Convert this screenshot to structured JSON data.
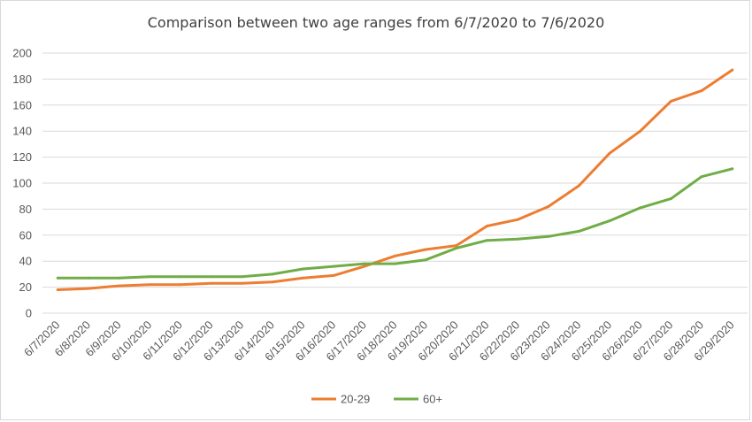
{
  "chart_data": {
    "type": "line",
    "title": "Comparison  between two age ranges from 6/7/2020 to 7/6/2020",
    "xlabel": "",
    "ylabel": "",
    "categories": [
      "6/7/2020",
      "6/8/2020",
      "6/9/2020",
      "6/10/2020",
      "6/11/2020",
      "6/12/2020",
      "6/13/2020",
      "6/14/2020",
      "6/15/2020",
      "6/16/2020",
      "6/17/2020",
      "6/18/2020",
      "6/19/2020",
      "6/20/2020",
      "6/21/2020",
      "6/22/2020",
      "6/23/2020",
      "6/24/2020",
      "6/25/2020",
      "6/26/2020",
      "6/27/2020",
      "6/28/2020",
      "6/29/2020"
    ],
    "ylim": [
      0,
      200
    ],
    "yticks": [
      0,
      20,
      40,
      60,
      80,
      100,
      120,
      140,
      160,
      180,
      200
    ],
    "grid": true,
    "legend_position": "bottom",
    "series": [
      {
        "name": "20-29",
        "color": "#ED7D31",
        "values": [
          18,
          19,
          21,
          22,
          22,
          23,
          23,
          24,
          27,
          29,
          36,
          44,
          49,
          52,
          67,
          72,
          82,
          98,
          123,
          140,
          163,
          171,
          187
        ]
      },
      {
        "name": "60+",
        "color": "#70AD47",
        "values": [
          27,
          27,
          27,
          28,
          28,
          28,
          28,
          30,
          34,
          36,
          38,
          38,
          41,
          50,
          56,
          57,
          59,
          63,
          71,
          81,
          88,
          105,
          111
        ]
      }
    ]
  }
}
